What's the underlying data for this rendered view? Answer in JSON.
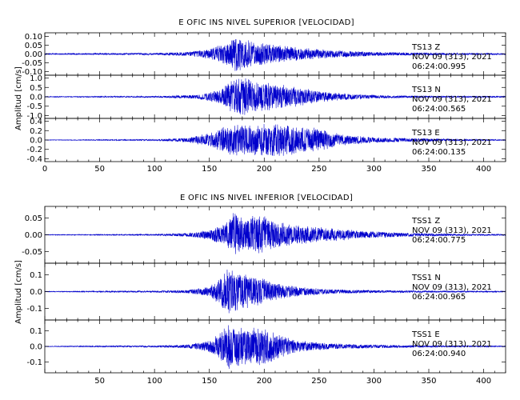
{
  "chart_data": [
    {
      "type": "line",
      "title": "E OFIC INS NIVEL SUPERIOR [VELOCIDAD]",
      "ylabel": "Amplitud [cm/s]",
      "xlim": [
        0,
        420
      ],
      "x_ticks": [
        0,
        50,
        100,
        150,
        200,
        250,
        300,
        350,
        400
      ],
      "line_color": "#0000cc",
      "series": [
        {
          "ann": [
            "TS13   Z",
            "NOV 09 (313), 2021",
            "06:24:00.995"
          ],
          "ylim": [
            -0.12,
            0.12
          ],
          "y_ticks": [
            0.1,
            0.05,
            0.0,
            -0.05,
            -0.1
          ],
          "y_tick_labels": [
            "0.10",
            "0.05",
            "0.00",
            "-0.05",
            "-0.10"
          ],
          "envelope": {
            "x": [
              0,
              100,
              130,
              150,
              165,
              175,
              185,
              200,
              220,
              245,
              270,
              300,
              340,
              380,
              420
            ],
            "y": [
              0.003,
              0.006,
              0.012,
              0.03,
              0.065,
              0.11,
              0.08,
              0.06,
              0.045,
              0.03,
              0.02,
              0.012,
              0.008,
              0.005,
              0.004
            ]
          }
        },
        {
          "ann": [
            "TS13   N",
            "NOV 09 (313), 2021",
            "06:24:00.565"
          ],
          "ylim": [
            -1.15,
            1.15
          ],
          "y_ticks": [
            1.0,
            0.5,
            0.0,
            -0.5,
            -1.0
          ],
          "y_tick_labels": [
            "1.0",
            "0.5",
            "0.0",
            "-0.5",
            "-1.0"
          ],
          "envelope": {
            "x": [
              0,
              100,
              140,
              160,
              170,
              178,
              190,
              210,
              230,
              250,
              280,
              310,
              350,
              420
            ],
            "y": [
              0.02,
              0.04,
              0.12,
              0.4,
              0.9,
              1.1,
              0.85,
              0.7,
              0.55,
              0.3,
              0.15,
              0.08,
              0.05,
              0.03
            ]
          }
        },
        {
          "ann": [
            "TS13   E",
            "NOV 09 (313), 2021",
            "06:24:00.135"
          ],
          "ylim": [
            -0.46,
            0.46
          ],
          "y_ticks": [
            0.4,
            0.2,
            0.0,
            -0.2,
            -0.4
          ],
          "y_tick_labels": [
            "0.4",
            "0.2",
            "0.0",
            "-0.2",
            "-0.4"
          ],
          "envelope": {
            "x": [
              0,
              100,
              130,
              150,
              165,
              175,
              190,
              210,
              230,
              250,
              270,
              300,
              340,
              380,
              420
            ],
            "y": [
              0.005,
              0.015,
              0.05,
              0.15,
              0.3,
              0.34,
              0.32,
              0.38,
              0.3,
              0.25,
              0.12,
              0.06,
              0.04,
              0.02,
              0.01
            ]
          }
        }
      ]
    },
    {
      "type": "line",
      "title": "E OFIC INS NIVEL INFERIOR [VELOCIDAD]",
      "ylabel": "Amplitud [cm/s]",
      "xlim": [
        0,
        420
      ],
      "x_ticks": [
        50,
        100,
        150,
        200,
        250,
        300,
        350,
        400
      ],
      "line_color": "#0000cc",
      "series": [
        {
          "ann": [
            "TSS1   Z",
            "NOV 09 (313), 2021",
            "06:24:00.775"
          ],
          "ylim": [
            -0.085,
            0.085
          ],
          "y_ticks": [
            0.05,
            0.0,
            -0.05
          ],
          "y_tick_labels": [
            "0.05",
            "0.00",
            "-0.05"
          ],
          "envelope": {
            "x": [
              0,
              100,
              130,
              150,
              165,
              172,
              180,
              195,
              210,
              230,
              260,
              290,
              330,
              380,
              420
            ],
            "y": [
              0.001,
              0.002,
              0.006,
              0.015,
              0.035,
              0.07,
              0.05,
              0.065,
              0.04,
              0.03,
              0.02,
              0.012,
              0.006,
              0.003,
              0.002
            ]
          }
        },
        {
          "ann": [
            "TSS1   N",
            "NOV 09 (313), 2021",
            "06:24:00.965"
          ],
          "ylim": [
            -0.17,
            0.17
          ],
          "y_ticks": [
            0.1,
            0.0,
            -0.1
          ],
          "y_tick_labels": [
            "0.1",
            "0.0",
            "-0.1"
          ],
          "envelope": {
            "x": [
              0,
              100,
              130,
              150,
              160,
              168,
              178,
              195,
              210,
              230,
              260,
              290,
              340,
              420
            ],
            "y": [
              0.002,
              0.005,
              0.01,
              0.03,
              0.08,
              0.16,
              0.11,
              0.09,
              0.05,
              0.03,
              0.015,
              0.01,
              0.006,
              0.003
            ]
          }
        },
        {
          "ann": [
            "TSS1   E",
            "NOV 09 (313), 2021",
            "06:24:00.940"
          ],
          "ylim": [
            -0.17,
            0.17
          ],
          "y_ticks": [
            0.1,
            0.0,
            -0.1
          ],
          "y_tick_labels": [
            "0.1",
            "0.0",
            "-0.1"
          ],
          "envelope": {
            "x": [
              0,
              100,
              130,
              150,
              160,
              168,
              180,
              195,
              200,
              215,
              230,
              260,
              300,
              350,
              420
            ],
            "y": [
              0.002,
              0.006,
              0.012,
              0.04,
              0.09,
              0.15,
              0.12,
              0.12,
              0.13,
              0.07,
              0.04,
              0.02,
              0.012,
              0.006,
              0.003
            ]
          }
        }
      ]
    }
  ]
}
